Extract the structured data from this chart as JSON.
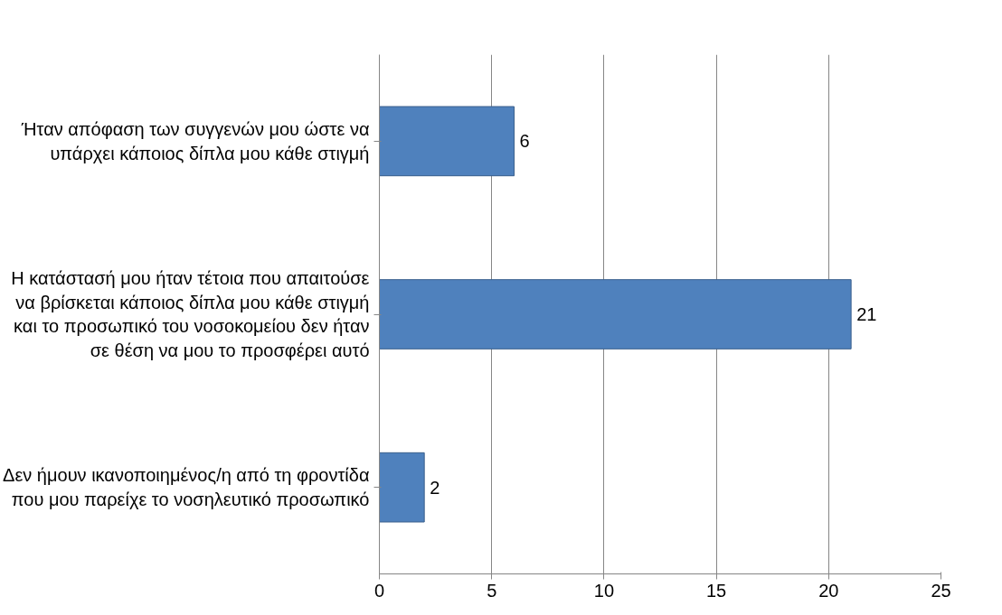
{
  "chart_data": {
    "type": "bar",
    "orientation": "horizontal",
    "categories": [
      "Ήταν απόφαση των συγγενών μου ώστε να\nυπάρχει κάποιος δίπλα μου κάθε στιγμή",
      "Η κατάστασή μου ήταν τέτοια που απαιτούσε\nνα βρίσκεται κάποιος δίπλα μου κάθε στιγμή\nκαι το προσωπικό του νοσοκομείου δεν ήταν\nσε θέση να μου το προσφέρει αυτό",
      "Δεν ήμουν ικανοποιημένος/η από τη φροντίδα\nπου μου παρείχε το νοσηλευτικό προσωπικό"
    ],
    "values": [
      6,
      21,
      2
    ],
    "color": "#4f81bd",
    "xlim": [
      0,
      25
    ],
    "xticks": [
      0,
      5,
      10,
      15,
      20,
      25
    ],
    "grid": "x",
    "data_labels": true
  }
}
